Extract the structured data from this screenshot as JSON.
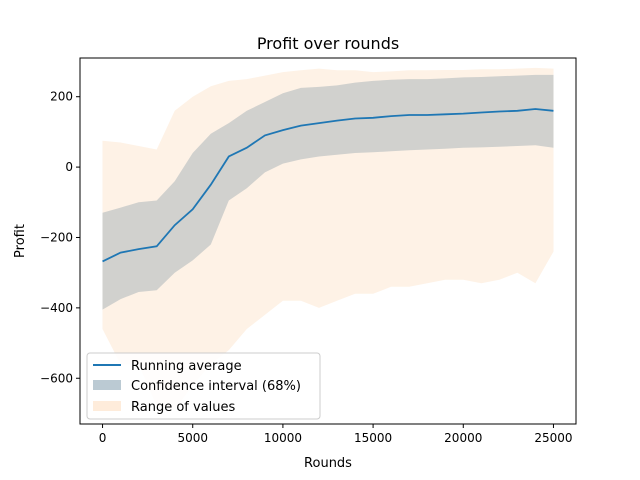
{
  "chart_data": {
    "type": "area",
    "title": "Profit over rounds",
    "xlabel": "Rounds",
    "ylabel": "Profit",
    "xlim": [
      -1250,
      26250
    ],
    "ylim": [
      -730,
      310
    ],
    "xticks": [
      0,
      5000,
      10000,
      15000,
      20000,
      25000
    ],
    "xtick_labels": [
      "0",
      "5000",
      "10000",
      "15000",
      "20000",
      "25000"
    ],
    "yticks": [
      -600,
      -400,
      -200,
      0,
      200
    ],
    "ytick_labels": [
      "−600",
      "−400",
      "−200",
      "0",
      "200"
    ],
    "grid": false,
    "legend_position": "lower-left",
    "colors": {
      "mean": "#1f77b4",
      "ci": "#1f4e6e",
      "range": "#fdd9b7"
    },
    "x": [
      0,
      1000,
      2000,
      3000,
      4000,
      5000,
      6000,
      7000,
      8000,
      9000,
      10000,
      11000,
      12000,
      13000,
      14000,
      15000,
      16000,
      17000,
      18000,
      19000,
      20000,
      21000,
      22000,
      23000,
      24000,
      25000
    ],
    "series": [
      {
        "name": "Running average",
        "kind": "line",
        "values": [
          -268,
          -243,
          -233,
          -225,
          -165,
          -120,
          -50,
          30,
          55,
          90,
          105,
          118,
          125,
          132,
          138,
          140,
          145,
          148,
          148,
          150,
          152,
          155,
          158,
          160,
          165,
          160
        ]
      },
      {
        "name": "Confidence interval (68%)",
        "kind": "band",
        "upper": [
          -130,
          -115,
          -100,
          -95,
          -40,
          40,
          95,
          125,
          160,
          185,
          210,
          225,
          228,
          232,
          240,
          245,
          248,
          250,
          250,
          252,
          255,
          256,
          258,
          260,
          262,
          262
        ],
        "lower": [
          -405,
          -375,
          -355,
          -350,
          -300,
          -265,
          -220,
          -95,
          -60,
          -15,
          10,
          22,
          30,
          35,
          40,
          42,
          45,
          48,
          50,
          52,
          55,
          56,
          58,
          60,
          62,
          55
        ]
      },
      {
        "name": "Range of values",
        "kind": "band",
        "upper": [
          75,
          70,
          60,
          50,
          160,
          200,
          230,
          245,
          250,
          260,
          270,
          275,
          280,
          275,
          275,
          270,
          272,
          275,
          275,
          276,
          276,
          278,
          278,
          280,
          282,
          280
        ],
        "lower": [
          -460,
          -560,
          -560,
          -680,
          -690,
          -620,
          -560,
          -520,
          -460,
          -420,
          -380,
          -380,
          -400,
          -380,
          -360,
          -360,
          -340,
          -340,
          -330,
          -320,
          -320,
          -330,
          -320,
          -300,
          -330,
          -240
        ]
      }
    ]
  }
}
